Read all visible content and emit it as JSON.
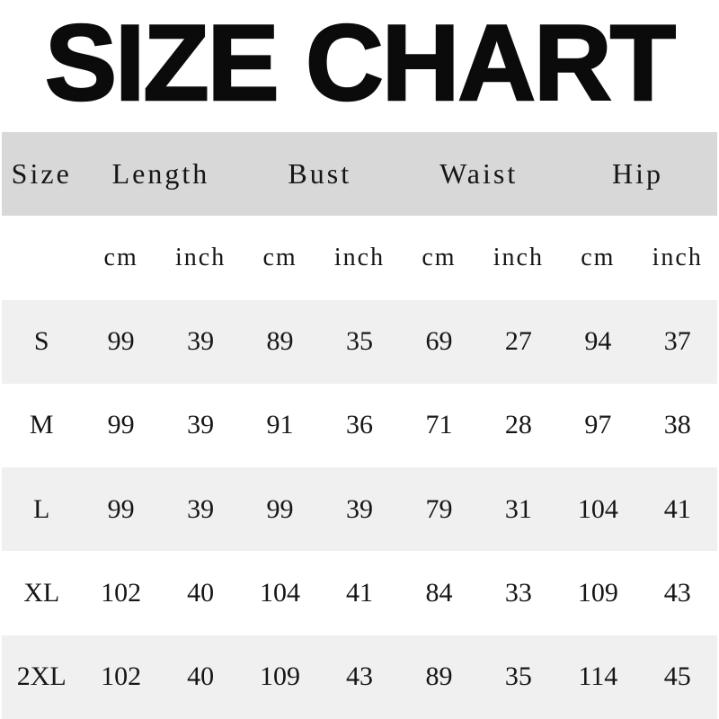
{
  "title": "SIZE CHART",
  "colors": {
    "header_band": "#d8d8d8",
    "alt_row": "#f0f0f0",
    "white_row": "#ffffff",
    "text": "#161616",
    "title": "#0b0b0b"
  },
  "chart_data": {
    "type": "table",
    "title": "SIZE CHART",
    "group_headers": [
      {
        "label": "Size",
        "span": 1
      },
      {
        "label": "Length",
        "span": 2
      },
      {
        "label": "Bust",
        "span": 2
      },
      {
        "label": "Waist",
        "span": 2
      },
      {
        "label": "Hip",
        "span": 2
      }
    ],
    "unit_row": [
      "",
      "cm",
      "inch",
      "cm",
      "inch",
      "cm",
      "inch",
      "cm",
      "inch"
    ],
    "rows": [
      {
        "size": "S",
        "values": [
          99,
          39,
          89,
          35,
          69,
          27,
          94,
          37
        ]
      },
      {
        "size": "M",
        "values": [
          99,
          39,
          91,
          36,
          71,
          28,
          97,
          38
        ]
      },
      {
        "size": "L",
        "values": [
          99,
          39,
          99,
          39,
          79,
          31,
          104,
          41
        ]
      },
      {
        "size": "XL",
        "values": [
          102,
          40,
          104,
          41,
          84,
          33,
          109,
          43
        ]
      },
      {
        "size": "2XL",
        "values": [
          102,
          40,
          109,
          43,
          89,
          35,
          114,
          45
        ]
      }
    ]
  }
}
